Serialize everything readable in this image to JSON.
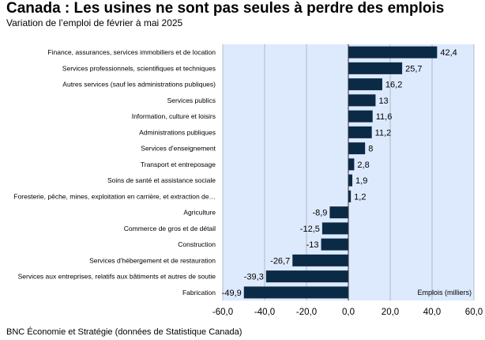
{
  "header": {
    "title": "Canada : Les usines ne sont pas seules à perdre des emplois",
    "subtitle": "Variation de l’emploi de février à mai 2025"
  },
  "footer": {
    "source": "BNC Économie et Stratégie (données de Statistique Canada)"
  },
  "colors": {
    "bar": "#0b2a46",
    "plot_background": "#ddeafe",
    "grid": "#9aa3ad"
  },
  "chart_data": {
    "type": "bar",
    "orientation": "horizontal",
    "categories": [
      "Finance, assurances, services immobiliers et de location",
      "Services professionnels, scientifiques et techniques",
      "Autres services (sauf les administrations publiques)",
      "Services publics",
      "Information, culture et loisirs",
      "Administrations publiques",
      "Services d'enseignement",
      "Transport et entreposage",
      "Soins de santé et assistance sociale",
      "Foresterie, pêche, mines, exploitation en carrière, et extraction de…",
      "Agriculture",
      "Commerce de gros et de détail",
      "Construction",
      "Services d'hébergement et de restauration",
      "Services aux entreprises, relatifs aux bâtiments et autres de soutie",
      "Fabrication"
    ],
    "values": [
      42.4,
      25.7,
      16.2,
      13,
      11.6,
      11.2,
      8,
      2.8,
      1.9,
      1.2,
      -8.9,
      -12.5,
      -13,
      -26.7,
      -39.3,
      -49.9
    ],
    "data_labels": [
      "42,4",
      "25,7",
      "16,2",
      "13",
      "11,6",
      "11,2",
      "8",
      "2,8",
      "1,9",
      "1,2",
      "-8,9",
      "-12,5",
      "-13",
      "-26,7",
      "-39,3",
      "-49,9"
    ],
    "xlim": [
      -60,
      60
    ],
    "xticks": [
      -60,
      -40,
      -20,
      0,
      20,
      40,
      60
    ],
    "xtick_labels": [
      "-60,0",
      "-40,0",
      "-20,0",
      "0,0",
      "20,0",
      "40,0",
      "60,0"
    ],
    "unit_label": "Emplois (milliers)",
    "grid": "vertical"
  }
}
